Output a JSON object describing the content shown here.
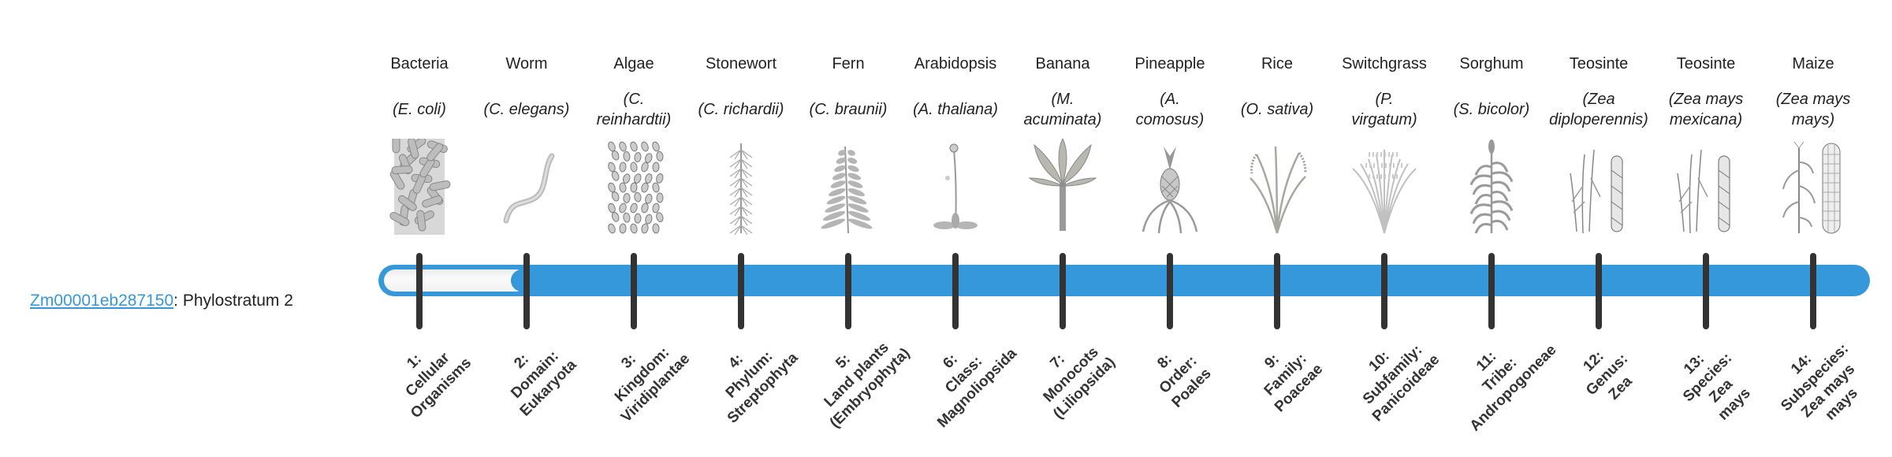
{
  "gene": {
    "id": "Zm00001eb287150",
    "suffix": ": Phylostratum 2",
    "phylostratum": 2,
    "total_strata": 14
  },
  "colors": {
    "bar": "#3498db",
    "tick": "#333333",
    "link": "#3498db"
  },
  "organisms": [
    {
      "common": "Bacteria",
      "species_lines": [
        "(E. coli)"
      ],
      "icon": "bacteria-icon",
      "rank_lines": [
        "1:",
        "Cellular",
        "Organisms"
      ]
    },
    {
      "common": "Worm",
      "species_lines": [
        "(C. elegans)"
      ],
      "icon": "worm-icon",
      "rank_lines": [
        "2:",
        "Domain:",
        "Eukaryota"
      ]
    },
    {
      "common": "Algae",
      "species_lines": [
        "(C.",
        "reinhardtii)"
      ],
      "icon": "algae-icon",
      "rank_lines": [
        "3:",
        "Kingdom:",
        "Viridiplantae"
      ]
    },
    {
      "common": "Stonewort",
      "species_lines": [
        "(C. richardii)"
      ],
      "icon": "stonewort-icon",
      "rank_lines": [
        "4:",
        "Phylum:",
        "Streptophyta"
      ]
    },
    {
      "common": "Fern",
      "species_lines": [
        "(C. braunii)"
      ],
      "icon": "fern-icon",
      "rank_lines": [
        "5:",
        "Land plants",
        "(Embryophyta)"
      ]
    },
    {
      "common": "Arabidopsis",
      "species_lines": [
        "(A. thaliana)"
      ],
      "icon": "arabidopsis-icon",
      "rank_lines": [
        "6:",
        "Class:",
        "Magnoliopsida"
      ]
    },
    {
      "common": "Banana",
      "species_lines": [
        "(M.",
        "acuminata)"
      ],
      "icon": "banana-icon",
      "rank_lines": [
        "7:",
        "Monocots",
        "(Liliopsida)"
      ]
    },
    {
      "common": "Pineapple",
      "species_lines": [
        "(A.",
        "comosus)"
      ],
      "icon": "pineapple-icon",
      "rank_lines": [
        "8:",
        "Order:",
        "Poales"
      ]
    },
    {
      "common": "Rice",
      "species_lines": [
        "(O. sativa)"
      ],
      "icon": "rice-icon",
      "rank_lines": [
        "9:",
        "Family:",
        "Poaceae"
      ]
    },
    {
      "common": "Switchgrass",
      "species_lines": [
        "(P.",
        "virgatum)"
      ],
      "icon": "switchgrass-icon",
      "rank_lines": [
        "10:",
        "Subfamily:",
        "Panicoideae"
      ]
    },
    {
      "common": "Sorghum",
      "species_lines": [
        "(S. bicolor)"
      ],
      "icon": "sorghum-icon",
      "rank_lines": [
        "11:",
        "Tribe:",
        "Andropogoneae"
      ]
    },
    {
      "common": "Teosinte",
      "species_lines": [
        "(Zea",
        "diploperennis)"
      ],
      "icon": "teosinte-icon",
      "rank_lines": [
        "12:",
        "Genus:",
        "Zea"
      ]
    },
    {
      "common": "Teosinte",
      "species_lines": [
        "(Zea mays",
        "mexicana)"
      ],
      "icon": "teosinte-icon",
      "rank_lines": [
        "13:",
        "Species:",
        "Zea",
        "mays"
      ]
    },
    {
      "common": "Maize",
      "species_lines": [
        "(Zea mays",
        "mays)"
      ],
      "icon": "maize-icon",
      "rank_lines": [
        "14:",
        "Subspecies:",
        "Zea mays",
        "mays"
      ]
    }
  ]
}
